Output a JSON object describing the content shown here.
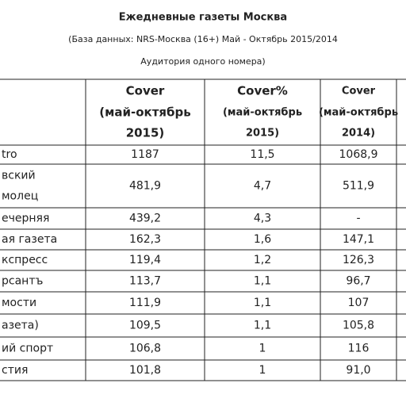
{
  "header": {
    "title": "Ежедневные газеты Москва",
    "subtitle": [
      "(База данных: NRS-Москва (16+) Май - Октябрь 2015/2014",
      "Аудитория одного номера)"
    ]
  },
  "table": {
    "columns": [
      [
        "Cover",
        "(май-октябрь",
        "2015)"
      ],
      [
        "Cover%",
        "(май-октябрь",
        "2015)"
      ],
      [
        "Cover",
        "(май-октябрь",
        "2014)"
      ]
    ],
    "rows": [
      {
        "label": [
          "tro"
        ],
        "cells": [
          "1187",
          "11,5",
          "1068,9"
        ]
      },
      {
        "label": [
          "вский",
          "молец"
        ],
        "cells": [
          "481,9",
          "4,7",
          "511,9"
        ]
      },
      {
        "label": [
          "ечерняя"
        ],
        "cells": [
          "439,2",
          "4,3",
          "-"
        ]
      },
      {
        "label": [
          "ая газета"
        ],
        "cells": [
          "162,3",
          "1,6",
          "147,1"
        ]
      },
      {
        "label": [
          "кспресс"
        ],
        "cells": [
          "119,4",
          "1,2",
          "126,3"
        ]
      },
      {
        "label": [
          "рсантъ"
        ],
        "cells": [
          "113,7",
          "1,1",
          "96,7"
        ]
      },
      {
        "label": [
          "мости"
        ],
        "cells": [
          "111,9",
          "1,1",
          "107"
        ]
      },
      {
        "label": [
          "азета)"
        ],
        "cells": [
          "109,5",
          "1,1",
          "105,8"
        ]
      },
      {
        "label": [
          "ий спорт"
        ],
        "cells": [
          "106,8",
          "1",
          "116"
        ]
      },
      {
        "label": [
          "стия"
        ],
        "cells": [
          "101,8",
          "1",
          "91,0"
        ]
      }
    ]
  }
}
